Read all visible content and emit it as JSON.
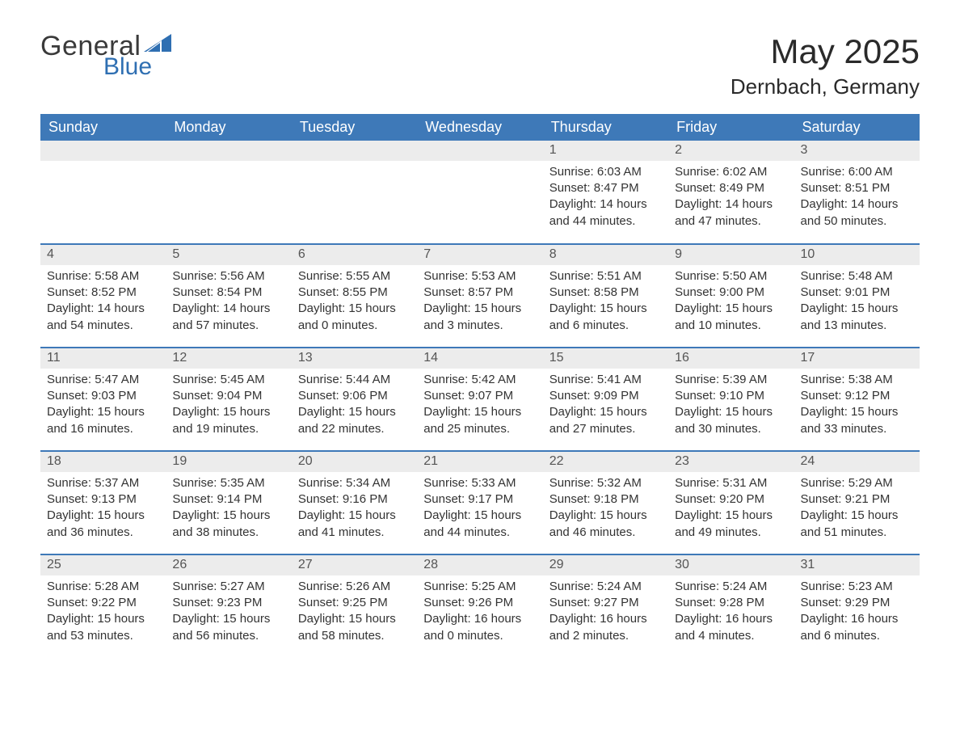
{
  "brand": {
    "text_general": "General",
    "text_blue": "Blue",
    "triangle_color": "#2f6fb2"
  },
  "header": {
    "month_title": "May 2025",
    "location": "Dernbach, Germany"
  },
  "calendar": {
    "header_bg": "#3e79b8",
    "header_text_color": "#ffffff",
    "row_divider_color": "#3e79b8",
    "daynum_bg": "#ececec",
    "background": "#ffffff",
    "text_color": "#333333",
    "font_size_body": 15,
    "font_size_header": 18,
    "font_size_title": 42,
    "font_size_location": 26,
    "weekdays": [
      "Sunday",
      "Monday",
      "Tuesday",
      "Wednesday",
      "Thursday",
      "Friday",
      "Saturday"
    ],
    "weeks": [
      [
        null,
        null,
        null,
        null,
        {
          "n": "1",
          "sunrise": "Sunrise: 6:03 AM",
          "sunset": "Sunset: 8:47 PM",
          "day1": "Daylight: 14 hours",
          "day2": "and 44 minutes."
        },
        {
          "n": "2",
          "sunrise": "Sunrise: 6:02 AM",
          "sunset": "Sunset: 8:49 PM",
          "day1": "Daylight: 14 hours",
          "day2": "and 47 minutes."
        },
        {
          "n": "3",
          "sunrise": "Sunrise: 6:00 AM",
          "sunset": "Sunset: 8:51 PM",
          "day1": "Daylight: 14 hours",
          "day2": "and 50 minutes."
        }
      ],
      [
        {
          "n": "4",
          "sunrise": "Sunrise: 5:58 AM",
          "sunset": "Sunset: 8:52 PM",
          "day1": "Daylight: 14 hours",
          "day2": "and 54 minutes."
        },
        {
          "n": "5",
          "sunrise": "Sunrise: 5:56 AM",
          "sunset": "Sunset: 8:54 PM",
          "day1": "Daylight: 14 hours",
          "day2": "and 57 minutes."
        },
        {
          "n": "6",
          "sunrise": "Sunrise: 5:55 AM",
          "sunset": "Sunset: 8:55 PM",
          "day1": "Daylight: 15 hours",
          "day2": "and 0 minutes."
        },
        {
          "n": "7",
          "sunrise": "Sunrise: 5:53 AM",
          "sunset": "Sunset: 8:57 PM",
          "day1": "Daylight: 15 hours",
          "day2": "and 3 minutes."
        },
        {
          "n": "8",
          "sunrise": "Sunrise: 5:51 AM",
          "sunset": "Sunset: 8:58 PM",
          "day1": "Daylight: 15 hours",
          "day2": "and 6 minutes."
        },
        {
          "n": "9",
          "sunrise": "Sunrise: 5:50 AM",
          "sunset": "Sunset: 9:00 PM",
          "day1": "Daylight: 15 hours",
          "day2": "and 10 minutes."
        },
        {
          "n": "10",
          "sunrise": "Sunrise: 5:48 AM",
          "sunset": "Sunset: 9:01 PM",
          "day1": "Daylight: 15 hours",
          "day2": "and 13 minutes."
        }
      ],
      [
        {
          "n": "11",
          "sunrise": "Sunrise: 5:47 AM",
          "sunset": "Sunset: 9:03 PM",
          "day1": "Daylight: 15 hours",
          "day2": "and 16 minutes."
        },
        {
          "n": "12",
          "sunrise": "Sunrise: 5:45 AM",
          "sunset": "Sunset: 9:04 PM",
          "day1": "Daylight: 15 hours",
          "day2": "and 19 minutes."
        },
        {
          "n": "13",
          "sunrise": "Sunrise: 5:44 AM",
          "sunset": "Sunset: 9:06 PM",
          "day1": "Daylight: 15 hours",
          "day2": "and 22 minutes."
        },
        {
          "n": "14",
          "sunrise": "Sunrise: 5:42 AM",
          "sunset": "Sunset: 9:07 PM",
          "day1": "Daylight: 15 hours",
          "day2": "and 25 minutes."
        },
        {
          "n": "15",
          "sunrise": "Sunrise: 5:41 AM",
          "sunset": "Sunset: 9:09 PM",
          "day1": "Daylight: 15 hours",
          "day2": "and 27 minutes."
        },
        {
          "n": "16",
          "sunrise": "Sunrise: 5:39 AM",
          "sunset": "Sunset: 9:10 PM",
          "day1": "Daylight: 15 hours",
          "day2": "and 30 minutes."
        },
        {
          "n": "17",
          "sunrise": "Sunrise: 5:38 AM",
          "sunset": "Sunset: 9:12 PM",
          "day1": "Daylight: 15 hours",
          "day2": "and 33 minutes."
        }
      ],
      [
        {
          "n": "18",
          "sunrise": "Sunrise: 5:37 AM",
          "sunset": "Sunset: 9:13 PM",
          "day1": "Daylight: 15 hours",
          "day2": "and 36 minutes."
        },
        {
          "n": "19",
          "sunrise": "Sunrise: 5:35 AM",
          "sunset": "Sunset: 9:14 PM",
          "day1": "Daylight: 15 hours",
          "day2": "and 38 minutes."
        },
        {
          "n": "20",
          "sunrise": "Sunrise: 5:34 AM",
          "sunset": "Sunset: 9:16 PM",
          "day1": "Daylight: 15 hours",
          "day2": "and 41 minutes."
        },
        {
          "n": "21",
          "sunrise": "Sunrise: 5:33 AM",
          "sunset": "Sunset: 9:17 PM",
          "day1": "Daylight: 15 hours",
          "day2": "and 44 minutes."
        },
        {
          "n": "22",
          "sunrise": "Sunrise: 5:32 AM",
          "sunset": "Sunset: 9:18 PM",
          "day1": "Daylight: 15 hours",
          "day2": "and 46 minutes."
        },
        {
          "n": "23",
          "sunrise": "Sunrise: 5:31 AM",
          "sunset": "Sunset: 9:20 PM",
          "day1": "Daylight: 15 hours",
          "day2": "and 49 minutes."
        },
        {
          "n": "24",
          "sunrise": "Sunrise: 5:29 AM",
          "sunset": "Sunset: 9:21 PM",
          "day1": "Daylight: 15 hours",
          "day2": "and 51 minutes."
        }
      ],
      [
        {
          "n": "25",
          "sunrise": "Sunrise: 5:28 AM",
          "sunset": "Sunset: 9:22 PM",
          "day1": "Daylight: 15 hours",
          "day2": "and 53 minutes."
        },
        {
          "n": "26",
          "sunrise": "Sunrise: 5:27 AM",
          "sunset": "Sunset: 9:23 PM",
          "day1": "Daylight: 15 hours",
          "day2": "and 56 minutes."
        },
        {
          "n": "27",
          "sunrise": "Sunrise: 5:26 AM",
          "sunset": "Sunset: 9:25 PM",
          "day1": "Daylight: 15 hours",
          "day2": "and 58 minutes."
        },
        {
          "n": "28",
          "sunrise": "Sunrise: 5:25 AM",
          "sunset": "Sunset: 9:26 PM",
          "day1": "Daylight: 16 hours",
          "day2": "and 0 minutes."
        },
        {
          "n": "29",
          "sunrise": "Sunrise: 5:24 AM",
          "sunset": "Sunset: 9:27 PM",
          "day1": "Daylight: 16 hours",
          "day2": "and 2 minutes."
        },
        {
          "n": "30",
          "sunrise": "Sunrise: 5:24 AM",
          "sunset": "Sunset: 9:28 PM",
          "day1": "Daylight: 16 hours",
          "day2": "and 4 minutes."
        },
        {
          "n": "31",
          "sunrise": "Sunrise: 5:23 AM",
          "sunset": "Sunset: 9:29 PM",
          "day1": "Daylight: 16 hours",
          "day2": "and 6 minutes."
        }
      ]
    ]
  }
}
